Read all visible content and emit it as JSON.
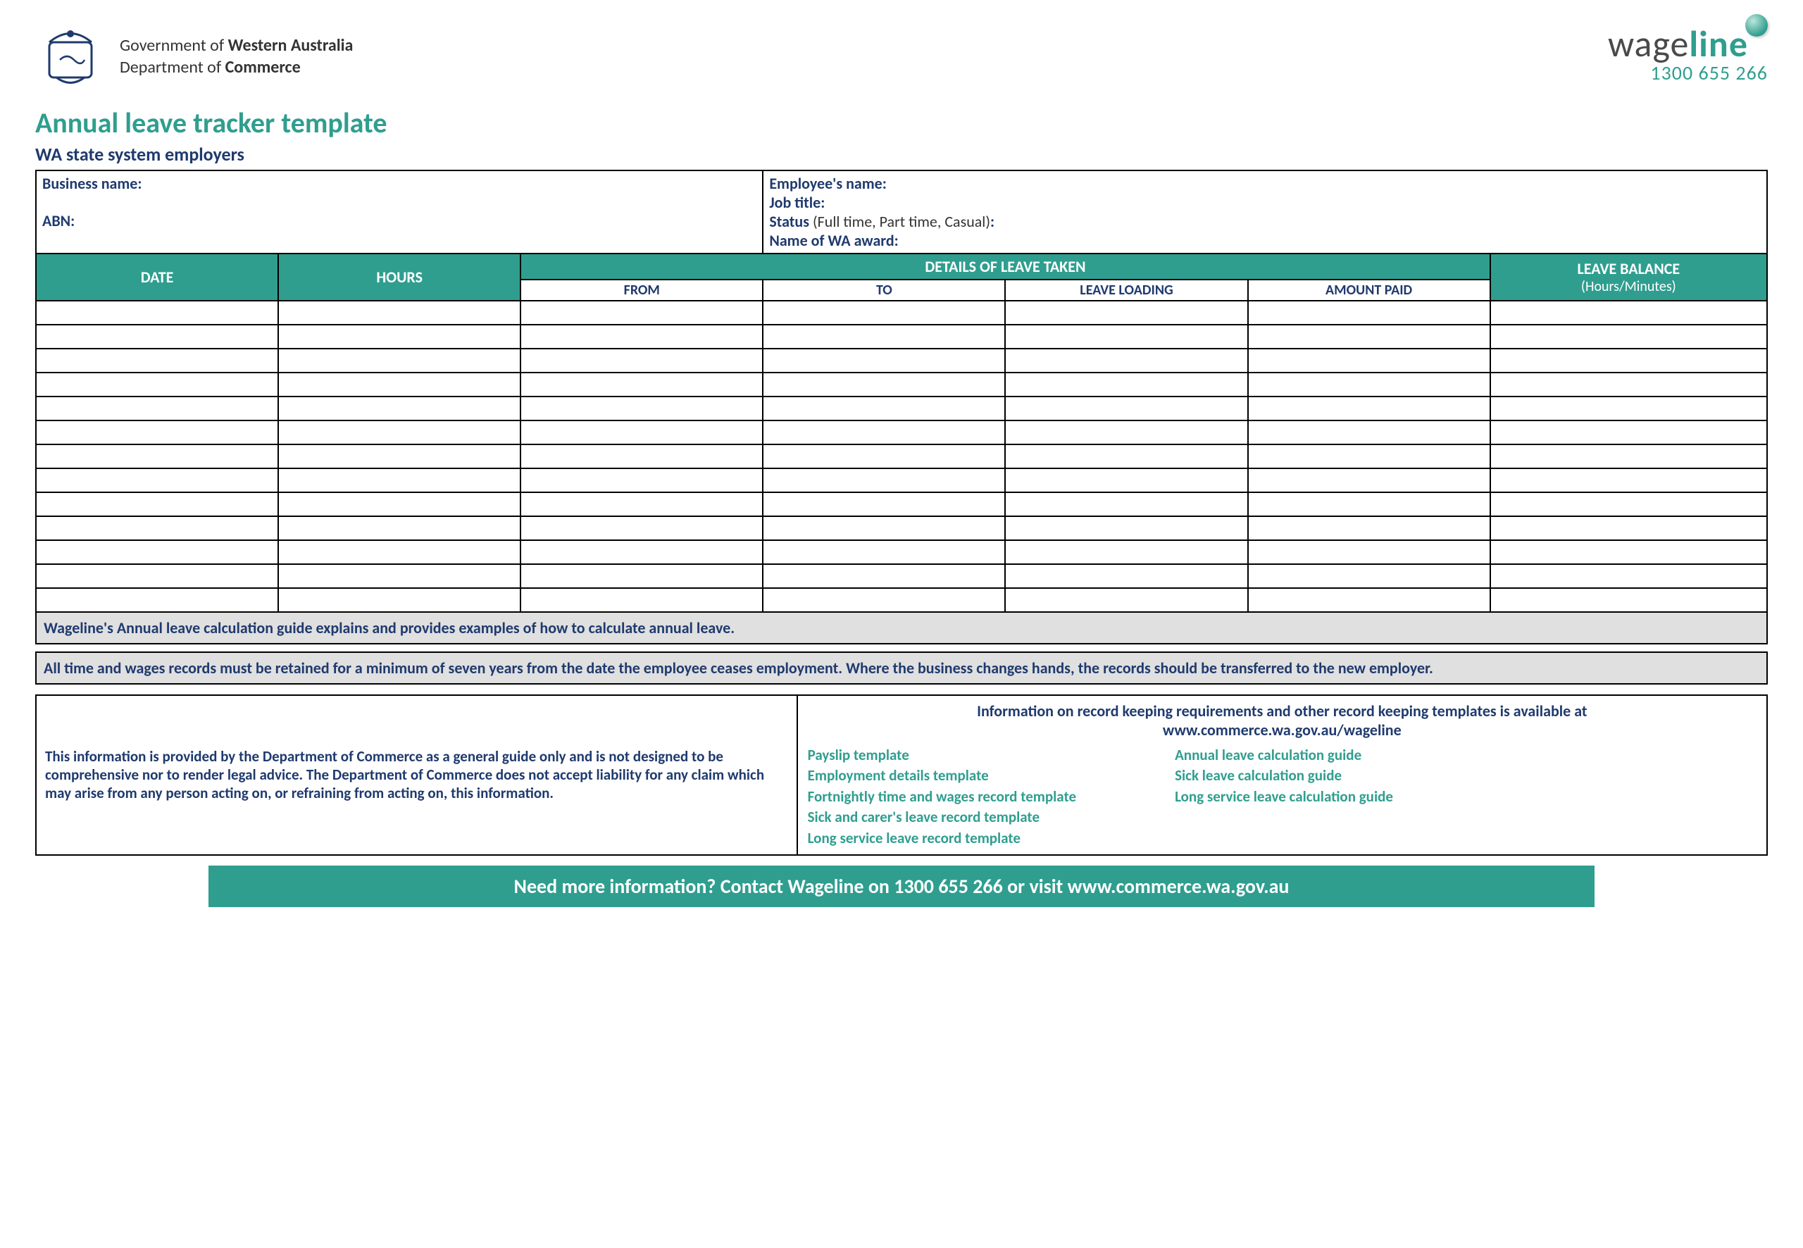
{
  "colors": {
    "teal": "#2f9e8f",
    "navy": "#1f3a6e",
    "grey_bg": "#e0e0e0",
    "border": "#000000",
    "white": "#ffffff"
  },
  "header": {
    "gov_line1_prefix": "Government of ",
    "gov_line1_bold": "Western Australia",
    "gov_line2_prefix": "Department of ",
    "gov_line2_bold": "Commerce",
    "brand_prefix": "wage",
    "brand_bold": "line",
    "phone": "1300 655 266"
  },
  "titles": {
    "main": "Annual leave tracker template",
    "sub": "WA state system employers"
  },
  "info_left": {
    "business": "Business name:",
    "abn": "ABN:"
  },
  "info_right": {
    "employee": "Employee's name:",
    "job": "Job title:",
    "status_label": "Status ",
    "status_sub": "(Full time, Part time, Casual)",
    "status_colon": ":",
    "award": "Name of WA award:"
  },
  "table": {
    "headers": {
      "date": "DATE",
      "hours": "HOURS",
      "details": "DETAILS OF LEAVE TAKEN",
      "from": "FROM",
      "to": "TO",
      "loading": "LEAVE LOADING",
      "amount": "AMOUNT PAID",
      "balance": "LEAVE BALANCE",
      "balance_sub": "(Hours/Minutes)"
    },
    "blank_rows": 13,
    "col_widths_pct": [
      14,
      14,
      14,
      14,
      14,
      14,
      16
    ]
  },
  "notes": {
    "guide": "Wageline's Annual leave calculation guide explains and provides examples of how to calculate annual leave.",
    "retention": "All time and wages records must be retained for a minimum of seven years from the date the employee ceases employment.  Where the business changes hands, the records should be transferred to the new employer."
  },
  "disclaimer": "This information is provided by the Department of Commerce as a general guide only and is not designed to be comprehensive nor to render legal advice. The Department of Commerce does not accept liability for any claim which may arise from any person acting on, or refraining from acting on, this information.",
  "resources": {
    "intro_line1": "Information on record keeping requirements and other record keeping templates is available at",
    "intro_line2": "www.commerce.wa.gov.au/wageline",
    "col1": [
      "Payslip template",
      "Employment details template",
      "Fortnightly time and wages record template",
      "Sick and carer's leave record template",
      "Long service leave record template"
    ],
    "col2": [
      "Annual leave calculation guide",
      "Sick leave calculation guide",
      "Long service leave calculation guide"
    ]
  },
  "footer": "Need more information? Contact Wageline on 1300 655 266 or visit www.commerce.wa.gov.au"
}
